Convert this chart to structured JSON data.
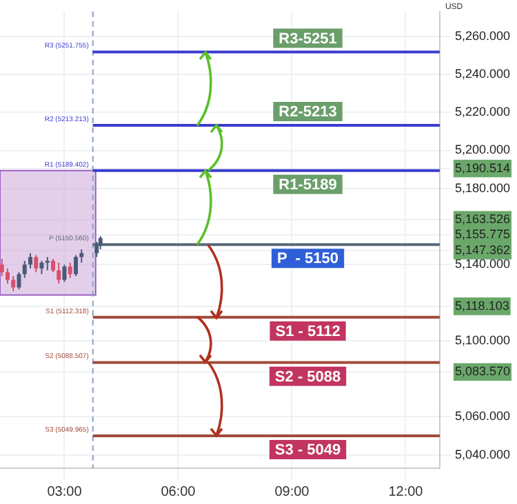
{
  "chart_data": {
    "type": "candlestick",
    "ylabel": "USD",
    "x": [
      1.35,
      1.5,
      1.65,
      1.8,
      1.95,
      2.1,
      2.25,
      2.4,
      2.55,
      2.7,
      2.85,
      3.0,
      3.15,
      3.3,
      3.45,
      3.85,
      3.95
    ],
    "ohlc": [
      [
        5140,
        5143,
        5134,
        5136
      ],
      [
        5136,
        5138,
        5130,
        5132
      ],
      [
        5132,
        5134,
        5126,
        5128
      ],
      [
        5128,
        5136,
        5127,
        5135
      ],
      [
        5135,
        5142,
        5133,
        5140
      ],
      [
        5140,
        5146,
        5138,
        5144
      ],
      [
        5144,
        5145,
        5136,
        5138
      ],
      [
        5138,
        5142,
        5135,
        5141
      ],
      [
        5141,
        5144,
        5137,
        5142
      ],
      [
        5142,
        5143,
        5136,
        5137
      ],
      [
        5137,
        5141,
        5130,
        5132
      ],
      [
        5132,
        5140,
        5131,
        5139
      ],
      [
        5139,
        5141,
        5133,
        5135
      ],
      [
        5135,
        5145,
        5134,
        5144
      ],
      [
        5144,
        5148,
        5141,
        5146
      ],
      [
        5146,
        5152,
        5144,
        5150
      ],
      [
        5150,
        5155,
        5148,
        5154
      ]
    ],
    "xlim": [
      1.3,
      12.9
    ],
    "xticks": [
      {
        "value": 3,
        "label": "03:00"
      },
      {
        "value": 6,
        "label": "06:00"
      },
      {
        "value": 9,
        "label": "09:00"
      },
      {
        "value": 12,
        "label": "12:00"
      }
    ],
    "ylim": [
      5033,
      5273
    ],
    "yticks": [
      {
        "value": 5040,
        "label": "5,040.000"
      },
      {
        "value": 5060,
        "label": "5,060.000"
      },
      {
        "value": 5083.57,
        "label": "5,083.570"
      },
      {
        "value": 5100,
        "label": "5,100.000"
      },
      {
        "value": 5118.103,
        "label": "5,118.103"
      },
      {
        "value": 5140,
        "label": "5,140.000"
      },
      {
        "value": 5147.362,
        "label": "5,147.362"
      },
      {
        "value": 5155.775,
        "label": "5,155.775"
      },
      {
        "value": 5163.526,
        "label": "5,163.526"
      },
      {
        "value": 5180,
        "label": "5,180.000"
      },
      {
        "value": 5190.514,
        "label": "5,190.514"
      },
      {
        "value": 5200,
        "label": "5,200.000"
      },
      {
        "value": 5220,
        "label": "5,220.000"
      },
      {
        "value": 5240,
        "label": "5,240.000"
      },
      {
        "value": 5260,
        "label": "5,260.000"
      }
    ],
    "grid": true,
    "ref_lines": [
      {
        "axis": "x",
        "value": 3.75,
        "label": null,
        "color": "#8aa0c0",
        "line_style": "dashed"
      },
      {
        "axis": "y",
        "value": 5251.755,
        "label": "R3 (5251.755)",
        "color": "#3a3ad0"
      },
      {
        "axis": "y",
        "value": 5213.213,
        "label": "R2 (5213.213)",
        "color": "#3a3ad0"
      },
      {
        "axis": "y",
        "value": 5189.402,
        "label": "R1 (5189.402)",
        "color": "#3a3ad0"
      },
      {
        "axis": "y",
        "value": 5150.56,
        "label": "P (5150.560)",
        "color": "#5a6878"
      },
      {
        "axis": "y",
        "value": 5112.318,
        "label": "S1 (5112.318)",
        "color": "#a04a3a"
      },
      {
        "axis": "y",
        "value": 5088.507,
        "label": "S2 (5088.507)",
        "color": "#a04a3a"
      },
      {
        "axis": "y",
        "value": 5049.965,
        "label": "S3 (5049.965)",
        "color": "#a04a3a"
      }
    ],
    "bands": [
      {
        "axis": "y",
        "from": 5124,
        "to": 5189.402,
        "label": null,
        "color": "#c9a0d8"
      }
    ],
    "annotations": [
      "R3-5251",
      "R2-5213",
      "R1-5189",
      "P  - 5150",
      "S1 - 5112",
      "S2 - 5088",
      "S3 - 5049"
    ]
  }
}
